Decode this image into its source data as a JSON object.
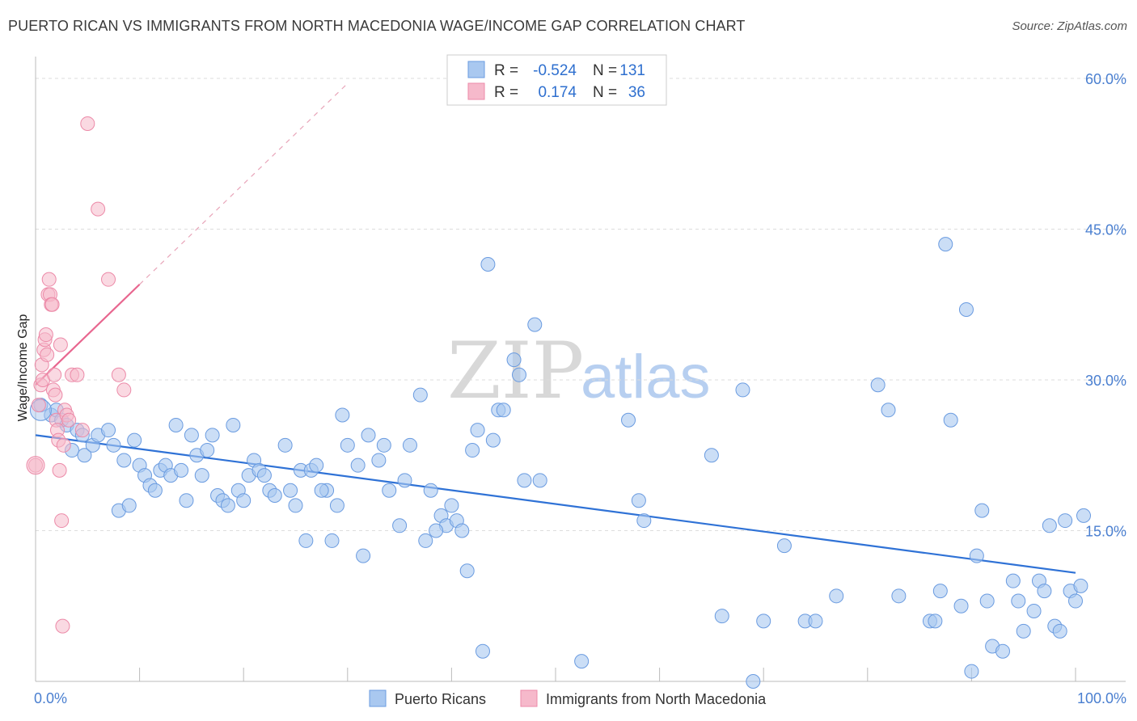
{
  "title": "PUERTO RICAN VS IMMIGRANTS FROM NORTH MACEDONIA WAGE/INCOME GAP CORRELATION CHART",
  "source": "Source: ZipAtlas.com",
  "watermark": {
    "zip": "ZIP",
    "atlas": "atlas"
  },
  "colors": {
    "blue_fill": "#a9c8f0",
    "blue_stroke": "#6a9be0",
    "blue_line": "#2f72d6",
    "pink_fill": "#f6b9cb",
    "pink_stroke": "#ec8aa8",
    "pink_line": "#e8668f",
    "tick_text": "#4a7fd0",
    "grid": "#dddddd"
  },
  "legend": {
    "rows": [
      {
        "r_label": "R =",
        "r_value": "-0.524",
        "n_label": "N =",
        "n_value": "131"
      },
      {
        "r_label": "R =",
        "r_value": "0.174",
        "n_label": "N =",
        "n_value": "36"
      }
    ]
  },
  "bottom_legend": [
    "Puerto Ricans",
    "Immigrants from North Macedonia"
  ],
  "chart_data": {
    "type": "scatter",
    "title": "PUERTO RICAN VS IMMIGRANTS FROM NORTH MACEDONIA WAGE/INCOME GAP CORRELATION CHART",
    "xlabel": "",
    "ylabel": "Wage/Income Gap",
    "xlim": [
      0,
      100
    ],
    "ylim": [
      0,
      60
    ],
    "x_tick_labels": [
      "0.0%",
      "100.0%"
    ],
    "y_ticks": [
      15,
      30,
      45,
      60
    ],
    "y_tick_labels": [
      "15.0%",
      "30.0%",
      "45.0%",
      "60.0%"
    ],
    "grid": true,
    "legend_position": "top-center",
    "series": [
      {
        "name": "Puerto Ricans",
        "R": -0.524,
        "N": 131,
        "trend": {
          "x": [
            0,
            100
          ],
          "y": [
            24.5,
            10.8
          ]
        },
        "points": [
          [
            0.5,
            27.5
          ],
          [
            1.5,
            26.5
          ],
          [
            2,
            27
          ],
          [
            2.5,
            26
          ],
          [
            3,
            25.5
          ],
          [
            3.5,
            23
          ],
          [
            4,
            25
          ],
          [
            4.5,
            24.5
          ],
          [
            4.7,
            22.5
          ],
          [
            5.5,
            23.5
          ],
          [
            6,
            24.5
          ],
          [
            7,
            25
          ],
          [
            7.5,
            23.5
          ],
          [
            8,
            17
          ],
          [
            8.5,
            22
          ],
          [
            9,
            17.5
          ],
          [
            9.5,
            24
          ],
          [
            10,
            21.5
          ],
          [
            10.5,
            20.5
          ],
          [
            11,
            19.5
          ],
          [
            11.5,
            19
          ],
          [
            12,
            21
          ],
          [
            12.5,
            21.5
          ],
          [
            13,
            20.5
          ],
          [
            13.5,
            25.5
          ],
          [
            14,
            21
          ],
          [
            14.5,
            18
          ],
          [
            15,
            24.5
          ],
          [
            15.5,
            22.5
          ],
          [
            16,
            20.5
          ],
          [
            16.5,
            23
          ],
          [
            17,
            24.5
          ],
          [
            17.5,
            18.5
          ],
          [
            18,
            18
          ],
          [
            18.5,
            17.5
          ],
          [
            19,
            25.5
          ],
          [
            19.5,
            19
          ],
          [
            20,
            18
          ],
          [
            20.5,
            20.5
          ],
          [
            21,
            22
          ],
          [
            21.5,
            21
          ],
          [
            22,
            20.5
          ],
          [
            22.5,
            19
          ],
          [
            23,
            18.5
          ],
          [
            24,
            23.5
          ],
          [
            24.5,
            19
          ],
          [
            25,
            17.5
          ],
          [
            25.5,
            21
          ],
          [
            26,
            14
          ],
          [
            26.5,
            21
          ],
          [
            27,
            21.5
          ],
          [
            28,
            19
          ],
          [
            28.5,
            14
          ],
          [
            29,
            17.5
          ],
          [
            29.5,
            26.5
          ],
          [
            30,
            23.5
          ],
          [
            31,
            21.5
          ],
          [
            31.5,
            12.5
          ],
          [
            32,
            24.5
          ],
          [
            33,
            22
          ],
          [
            33.5,
            23.5
          ],
          [
            34,
            19
          ],
          [
            35,
            15.5
          ],
          [
            35.5,
            20
          ],
          [
            36,
            23.5
          ],
          [
            37,
            28.5
          ],
          [
            37.5,
            14
          ],
          [
            38,
            19
          ],
          [
            39,
            16.5
          ],
          [
            39.5,
            15.5
          ],
          [
            40,
            17.5
          ],
          [
            40.5,
            16
          ],
          [
            41,
            15
          ],
          [
            41.5,
            11
          ],
          [
            42,
            23
          ],
          [
            42.5,
            25
          ],
          [
            43,
            3
          ],
          [
            44,
            24
          ],
          [
            44.5,
            27
          ],
          [
            45,
            27
          ],
          [
            46,
            32
          ],
          [
            46.5,
            30.5
          ],
          [
            47,
            20
          ],
          [
            48,
            35.5
          ],
          [
            43.5,
            41.5
          ],
          [
            52.5,
            2
          ],
          [
            58,
            18
          ],
          [
            58.5,
            16
          ],
          [
            65,
            22.5
          ],
          [
            66,
            6.5
          ],
          [
            68,
            29
          ],
          [
            69,
            0
          ],
          [
            70,
            6
          ],
          [
            72,
            13.5
          ],
          [
            74,
            6
          ],
          [
            75,
            6
          ],
          [
            77,
            8.5
          ],
          [
            81,
            29.5
          ],
          [
            82,
            27
          ],
          [
            83,
            8.5
          ],
          [
            86,
            6
          ],
          [
            86.5,
            6
          ],
          [
            87,
            9
          ],
          [
            87.5,
            43.5
          ],
          [
            88,
            26
          ],
          [
            89,
            7.5
          ],
          [
            89.5,
            37
          ],
          [
            90,
            1
          ],
          [
            90.5,
            12.5
          ],
          [
            91,
            17
          ],
          [
            91.5,
            8
          ],
          [
            92,
            3.5
          ],
          [
            93,
            3
          ],
          [
            94,
            10
          ],
          [
            94.5,
            8
          ],
          [
            95,
            5
          ],
          [
            96,
            7
          ],
          [
            96.5,
            10
          ],
          [
            97,
            9
          ],
          [
            98,
            5.5
          ],
          [
            98.5,
            5
          ],
          [
            99,
            16
          ],
          [
            99.5,
            9
          ],
          [
            100,
            8
          ],
          [
            100.5,
            9.5
          ],
          [
            101,
            16.5
          ],
          [
            97.5,
            15.5
          ],
          [
            48.5,
            20
          ],
          [
            57,
            26
          ],
          [
            38.5,
            15
          ],
          [
            27.5,
            19
          ]
        ]
      },
      {
        "name": "Immigrants from North Macedonia",
        "R": 0.174,
        "N": 36,
        "trend": {
          "x": [
            0,
            10
          ],
          "y": [
            29.5,
            39.5
          ]
        },
        "trend_extension": {
          "x": [
            10,
            30
          ],
          "y": [
            39.5,
            59.5
          ]
        },
        "points": [
          [
            0,
            21.5
          ],
          [
            0.3,
            27.5
          ],
          [
            0.5,
            29.5
          ],
          [
            0.6,
            31.5
          ],
          [
            0.7,
            30
          ],
          [
            0.8,
            33
          ],
          [
            0.9,
            34
          ],
          [
            1,
            34.5
          ],
          [
            1.1,
            32.5
          ],
          [
            1.2,
            38.5
          ],
          [
            1.3,
            40
          ],
          [
            1.4,
            38.5
          ],
          [
            1.5,
            37.5
          ],
          [
            1.6,
            37.5
          ],
          [
            1.7,
            29
          ],
          [
            1.8,
            30.5
          ],
          [
            1.9,
            28.5
          ],
          [
            2,
            26
          ],
          [
            2.1,
            25
          ],
          [
            2.2,
            24
          ],
          [
            2.3,
            21
          ],
          [
            2.4,
            33.5
          ],
          [
            2.5,
            16
          ],
          [
            2.6,
            5.5
          ],
          [
            2.7,
            23.5
          ],
          [
            2.8,
            27
          ],
          [
            3,
            26.5
          ],
          [
            3.5,
            30.5
          ],
          [
            4,
            30.5
          ],
          [
            4.5,
            25
          ],
          [
            5,
            55.5
          ],
          [
            6,
            47
          ],
          [
            7,
            40
          ],
          [
            8,
            30.5
          ],
          [
            8.5,
            29
          ],
          [
            3.2,
            26
          ]
        ]
      }
    ]
  }
}
